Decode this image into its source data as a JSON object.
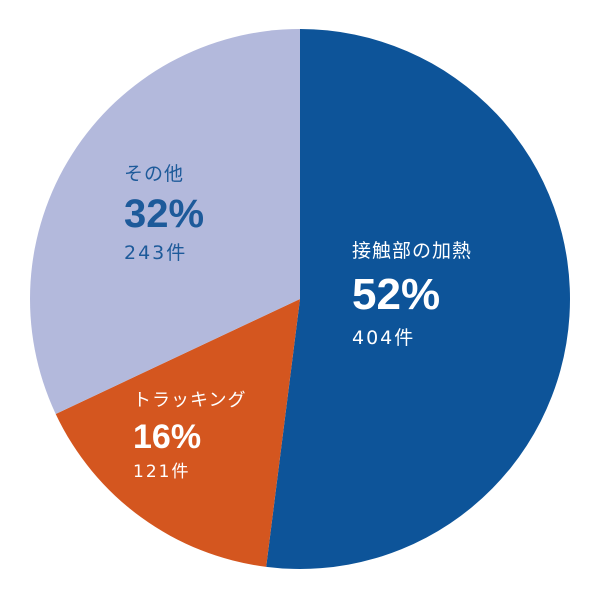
{
  "chart_data": {
    "type": "pie",
    "title": "",
    "start_angle_deg": 0,
    "direction": "clockwise",
    "slices": [
      {
        "label": "接触部の加熱",
        "percent": 52,
        "percent_label": "52%",
        "count": 404,
        "count_label": "404件",
        "color": "#0d5499"
      },
      {
        "label": "トラッキング",
        "percent": 16,
        "percent_label": "16%",
        "count": 121,
        "count_label": "121件",
        "color": "#d4561f"
      },
      {
        "label": "その他",
        "percent": 32,
        "percent_label": "32%",
        "count": 243,
        "count_label": "243件",
        "color": "#b3b9dc"
      }
    ]
  }
}
